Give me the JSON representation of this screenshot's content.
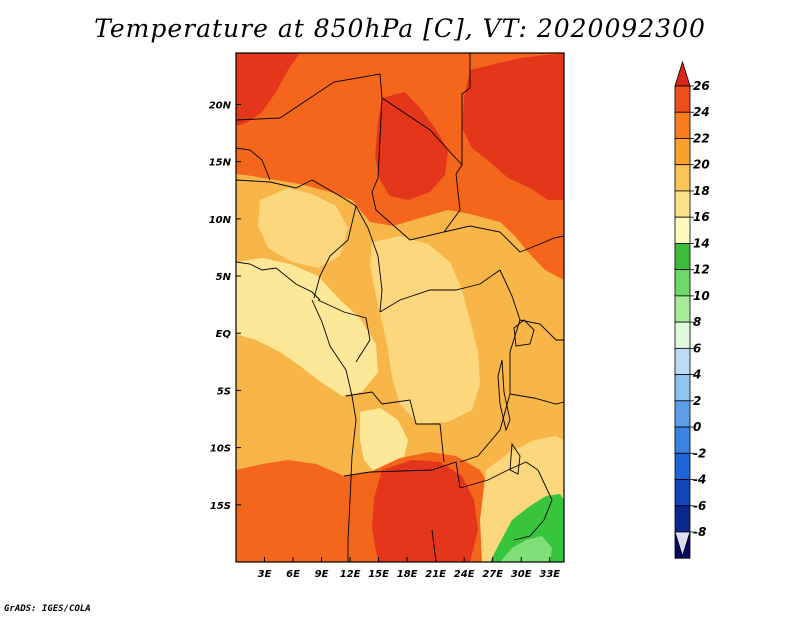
{
  "title": "Temperature at 850hPa [C], VT: 2020092300",
  "credit": "GrADS: IGES/COLA",
  "map": {
    "lon_range": [
      0,
      34.5
    ],
    "lat_range": [
      -20,
      24.5
    ],
    "lon_ticks": [
      "3E",
      "6E",
      "9E",
      "12E",
      "15E",
      "18E",
      "21E",
      "24E",
      "27E",
      "30E",
      "33E"
    ],
    "lat_ticks": [
      "20N",
      "15N",
      "10N",
      "5N",
      "EQ",
      "5S",
      "10S",
      "15S"
    ],
    "field_colors": {
      "c14_16": "#fde89a",
      "c16_18": "#fcd77e",
      "c18_20": "#f8b548",
      "c20_22": "#f79a27",
      "c22_24": "#f4661c",
      "c24_26": "#e4361a",
      "c12_14": "#38c43d",
      "c10_12": "#7fe07a"
    }
  },
  "colorbar": {
    "labels": [
      "26",
      "24",
      "22",
      "20",
      "18",
      "16",
      "14",
      "12",
      "10",
      "8",
      "6",
      "4",
      "2",
      "0",
      "-2",
      "-4",
      "-6",
      "-8"
    ],
    "colors": [
      "#d92619",
      "#ed4f1c",
      "#f77d1f",
      "#f9a12b",
      "#fbc45a",
      "#fde28c",
      "#fff9bd",
      "#3cbc3d",
      "#6ed86a",
      "#a8ec9a",
      "#e0f8dc",
      "#bbdcf4",
      "#90c4f0",
      "#5d9ee9",
      "#3a82e3",
      "#1f64d6",
      "#1245ba",
      "#0a268f",
      "#050a64"
    ],
    "top_triangle_color": "#d92619",
    "bottom_triangle_color": "#dcdcf5"
  }
}
